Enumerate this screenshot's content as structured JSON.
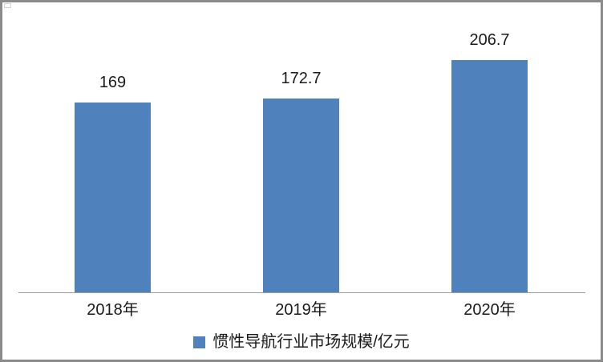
{
  "chart_data": {
    "type": "bar",
    "categories": [
      "2018年",
      "2019年",
      "2020年"
    ],
    "values": [
      169,
      172.7,
      206.7
    ],
    "value_labels": [
      "169",
      "172.7",
      "206.7"
    ],
    "series": [
      {
        "name": "惯性导航行业市场规模/亿元",
        "values": [
          169,
          172.7,
          206.7
        ]
      }
    ],
    "title": "",
    "xlabel": "",
    "ylabel": "",
    "ylim": [
      0,
      250
    ],
    "grid": false,
    "y_axis_visible": false,
    "legend_position": "bottom",
    "bar_color": "#4F81BD",
    "axis_color": "#9c9c9c"
  },
  "legend": {
    "marker_color": "#4F81BD",
    "label": "惯性导航行业市场规模/亿元"
  }
}
